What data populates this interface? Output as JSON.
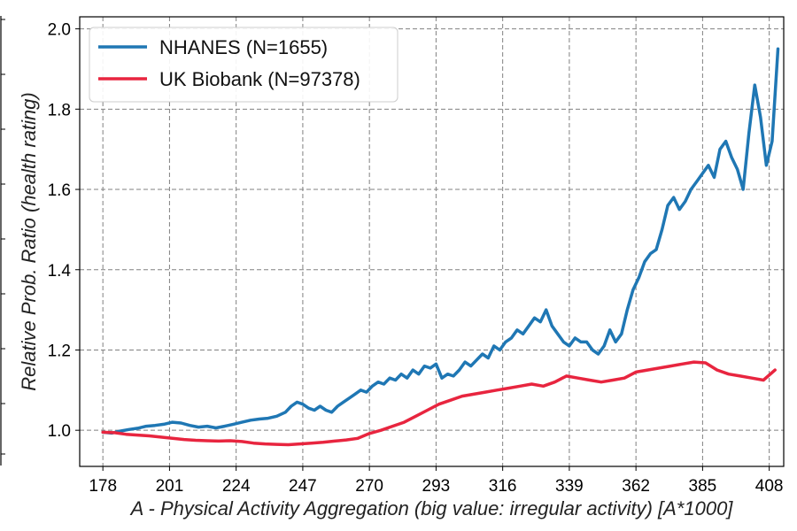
{
  "chart_data": {
    "type": "line",
    "title": "",
    "xlabel": "A - Physical Activity Aggregation (big value: irregular activity) [A*1000]",
    "ylabel": "Relative Prob. Ratio (health rating)",
    "xlim": [
      170,
      413
    ],
    "ylim": [
      0.91,
      2.03
    ],
    "xticks": [
      178,
      201,
      224,
      247,
      270,
      293,
      316,
      339,
      362,
      385,
      408
    ],
    "yticks": [
      1.0,
      1.2,
      1.4,
      1.6,
      1.8,
      2.0
    ],
    "ytick_labels": [
      "1.0",
      "1.2",
      "1.4",
      "1.6",
      "1.8",
      "2.0"
    ],
    "grid": true,
    "legend_position": "top-left",
    "series": [
      {
        "name": "NHANES (N=1655)",
        "color": "#1f77b4",
        "x": [
          178,
          181,
          184,
          187,
          190,
          193,
          196,
          199,
          202,
          205,
          208,
          211,
          214,
          217,
          220,
          223,
          226,
          229,
          232,
          235,
          238,
          241,
          243,
          245,
          247,
          249,
          251,
          253,
          255,
          257,
          259,
          261,
          263,
          265,
          267,
          269,
          271,
          273,
          275,
          277,
          279,
          281,
          283,
          285,
          287,
          289,
          291,
          293,
          295,
          297,
          299,
          301,
          303,
          305,
          307,
          309,
          311,
          313,
          315,
          317,
          319,
          321,
          323,
          325,
          327,
          329,
          331,
          333,
          335,
          337,
          339,
          341,
          343,
          345,
          347,
          349,
          351,
          353,
          355,
          357,
          359,
          361,
          363,
          365,
          367,
          369,
          371,
          373,
          375,
          377,
          379,
          381,
          383,
          385,
          387,
          389,
          391,
          393,
          395,
          397,
          399,
          401,
          403,
          405,
          407,
          409,
          411
        ],
        "y": [
          0.995,
          0.993,
          0.998,
          1.002,
          1.005,
          1.01,
          1.012,
          1.015,
          1.02,
          1.018,
          1.012,
          1.008,
          1.01,
          1.006,
          1.01,
          1.015,
          1.02,
          1.025,
          1.028,
          1.03,
          1.035,
          1.045,
          1.06,
          1.07,
          1.065,
          1.055,
          1.05,
          1.06,
          1.05,
          1.045,
          1.06,
          1.07,
          1.08,
          1.09,
          1.1,
          1.095,
          1.11,
          1.12,
          1.115,
          1.13,
          1.125,
          1.14,
          1.13,
          1.15,
          1.14,
          1.16,
          1.155,
          1.165,
          1.13,
          1.14,
          1.135,
          1.15,
          1.17,
          1.16,
          1.175,
          1.19,
          1.18,
          1.21,
          1.2,
          1.22,
          1.23,
          1.25,
          1.24,
          1.26,
          1.28,
          1.27,
          1.3,
          1.26,
          1.24,
          1.22,
          1.21,
          1.23,
          1.22,
          1.22,
          1.2,
          1.19,
          1.21,
          1.25,
          1.22,
          1.24,
          1.3,
          1.35,
          1.38,
          1.42,
          1.44,
          1.45,
          1.5,
          1.56,
          1.58,
          1.55,
          1.57,
          1.6,
          1.62,
          1.64,
          1.66,
          1.63,
          1.7,
          1.72,
          1.68,
          1.65,
          1.6,
          1.74,
          1.86,
          1.78,
          1.66,
          1.72,
          1.95
        ]
      },
      {
        "name": "UK Biobank (N=97378)",
        "color": "#e8253f",
        "x": [
          178,
          182,
          186,
          190,
          194,
          198,
          202,
          206,
          210,
          214,
          218,
          222,
          226,
          230,
          234,
          238,
          242,
          246,
          250,
          254,
          258,
          262,
          266,
          270,
          274,
          278,
          282,
          286,
          290,
          294,
          298,
          302,
          306,
          310,
          314,
          318,
          322,
          326,
          330,
          334,
          338,
          342,
          346,
          350,
          354,
          358,
          362,
          366,
          370,
          374,
          378,
          382,
          386,
          390,
          394,
          398,
          402,
          406,
          410
        ],
        "y": [
          0.995,
          0.994,
          0.99,
          0.988,
          0.986,
          0.983,
          0.98,
          0.977,
          0.975,
          0.974,
          0.973,
          0.974,
          0.972,
          0.968,
          0.966,
          0.965,
          0.964,
          0.966,
          0.968,
          0.97,
          0.973,
          0.976,
          0.98,
          0.992,
          1.0,
          1.01,
          1.02,
          1.035,
          1.05,
          1.065,
          1.075,
          1.085,
          1.09,
          1.095,
          1.1,
          1.105,
          1.11,
          1.115,
          1.11,
          1.12,
          1.135,
          1.13,
          1.125,
          1.12,
          1.125,
          1.13,
          1.145,
          1.15,
          1.155,
          1.16,
          1.165,
          1.17,
          1.168,
          1.15,
          1.14,
          1.135,
          1.13,
          1.125,
          1.15
        ]
      }
    ]
  }
}
